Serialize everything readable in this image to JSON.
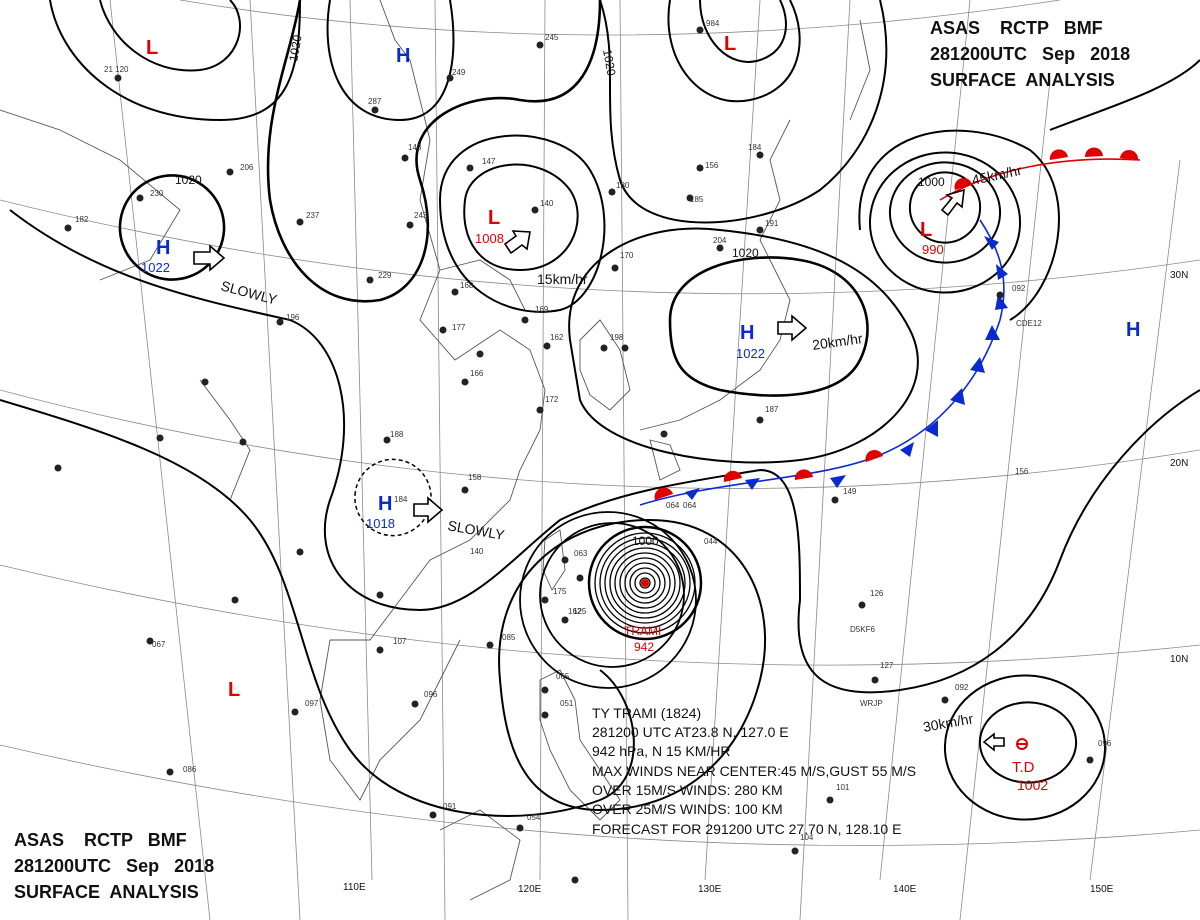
{
  "header_top": {
    "line1": "ASAS    RCTP   BMF",
    "line2": "281200UTC   Sep   2018",
    "line3": "SURFACE  ANALYSIS"
  },
  "header_bottom": {
    "line1": "ASAS    RCTP   BMF",
    "line2": "281200UTC   Sep   2018",
    "line3": "SURFACE  ANALYSIS"
  },
  "lon_labels": [
    "110E",
    "120E",
    "130E",
    "140E",
    "150E"
  ],
  "lat_labels": [
    "30N",
    "20N",
    "10N"
  ],
  "isobar_labels": [
    "1020",
    "1020",
    "1020",
    "1020",
    "1000",
    "1000"
  ],
  "systems": [
    {
      "letter": "L",
      "type": "low"
    },
    {
      "letter": "H",
      "type": "high"
    },
    {
      "letter": "L",
      "type": "low"
    },
    {
      "letter": "H",
      "type": "high",
      "pressure": "1022"
    },
    {
      "letter": "L",
      "type": "low",
      "pressure": "1008"
    },
    {
      "letter": "H",
      "type": "high",
      "pressure": "1022"
    },
    {
      "letter": "L",
      "type": "low",
      "pressure": "990"
    },
    {
      "letter": "H",
      "type": "high"
    },
    {
      "letter": "H",
      "type": "high",
      "pressure": "1018"
    },
    {
      "letter": "L",
      "type": "low"
    }
  ],
  "motions": [
    "SLOWLY",
    "15km/hr",
    "20km/hr",
    "45km/hr",
    "SLOWLY",
    "30km/hr"
  ],
  "typhoon": {
    "name": "TRAMI",
    "pressure": "942"
  },
  "tropical_depression": {
    "label": "T.D",
    "pressure": "1002"
  },
  "bulletin": [
    "TY  TRAMI  (1824)",
    "281200 UTC  AT23.8 N, 127.0 E",
    "942 hPa, N  15 KM/HR",
    "MAX WINDS NEAR CENTER:45 M/S,GUST 55 M/S",
    "OVER 15M/S WINDS: 280 KM",
    "OVER 25M/S WINDS: 100 KM",
    "FORECAST FOR 291200 UTC 27.70 N, 128.10 E"
  ],
  "stations": [
    "21 120",
    "245",
    "984",
    "249",
    "287",
    "156",
    "184",
    "206",
    "148",
    "147",
    "180",
    "185",
    "230",
    "182",
    "237",
    "243",
    "140",
    "191",
    "204",
    "229",
    "168",
    "170",
    "196",
    "177",
    "169",
    "092",
    "162",
    "198",
    "064",
    "184",
    "188",
    "166",
    "172",
    "187",
    "156",
    "149",
    "158",
    "044",
    "064",
    "063",
    "140",
    "175",
    "125",
    "162",
    "085",
    "107",
    "126",
    "127",
    "067",
    "097",
    "096",
    "065",
    "092",
    "051",
    "086",
    "091",
    "101",
    "104",
    "096",
    "054",
    "CDE12",
    "D5KF6",
    "WRJP"
  ],
  "colors": {
    "low": "#e00000",
    "high": "#0a2ad0",
    "isobar": "#000000",
    "grid": "#888888",
    "coast": "#555555"
  }
}
